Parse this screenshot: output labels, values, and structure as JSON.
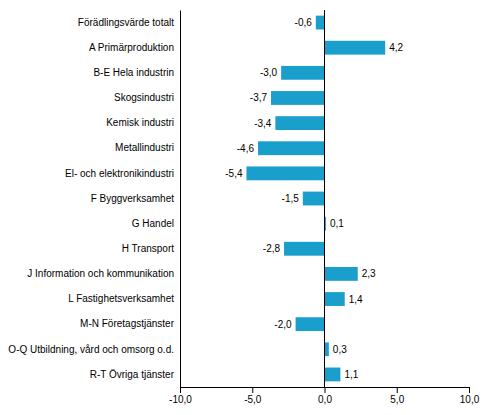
{
  "chart_data": {
    "type": "bar",
    "orientation": "horizontal",
    "categories": [
      "Förädlingsvärde totalt",
      "A Primärproduktion",
      "B-E Hela industrin",
      "Skogsindustri",
      "Kemisk industri",
      "Metallindustri",
      "El- och elektronikindustri",
      "F Byggverksamhet",
      "G Handel",
      "H Transport",
      "J Information och kommunikation",
      "L Fastighetsverksamhet",
      "M-N Företagstjänster",
      "O-Q Utbildning, vård och omsorg o.d.",
      "R-T Övriga tjänster"
    ],
    "values": [
      -0.6,
      4.2,
      -3.0,
      -3.7,
      -3.4,
      -4.6,
      -5.4,
      -1.5,
      0.1,
      -2.8,
      2.3,
      1.4,
      -2.0,
      0.3,
      1.1
    ],
    "value_labels": [
      "-0,6",
      "4,2",
      "-3,0",
      "-3,7",
      "-3,4",
      "-4,6",
      "-5,4",
      "-1,5",
      "0,1",
      "-2,8",
      "2,3",
      "1,4",
      "-2,0",
      "0,3",
      "1,1"
    ],
    "color": "#1a9fcd",
    "xlim": [
      -10.0,
      10.0
    ],
    "xticks": [
      {
        "value": -10.0,
        "label": "-10,0"
      },
      {
        "value": -5.0,
        "label": "-5,0"
      },
      {
        "value": 0.0,
        "label": "0,0"
      },
      {
        "value": 5.0,
        "label": "5,0"
      },
      {
        "value": 10.0,
        "label": "10,0"
      }
    ],
    "data_labels": true,
    "grid": false
  }
}
